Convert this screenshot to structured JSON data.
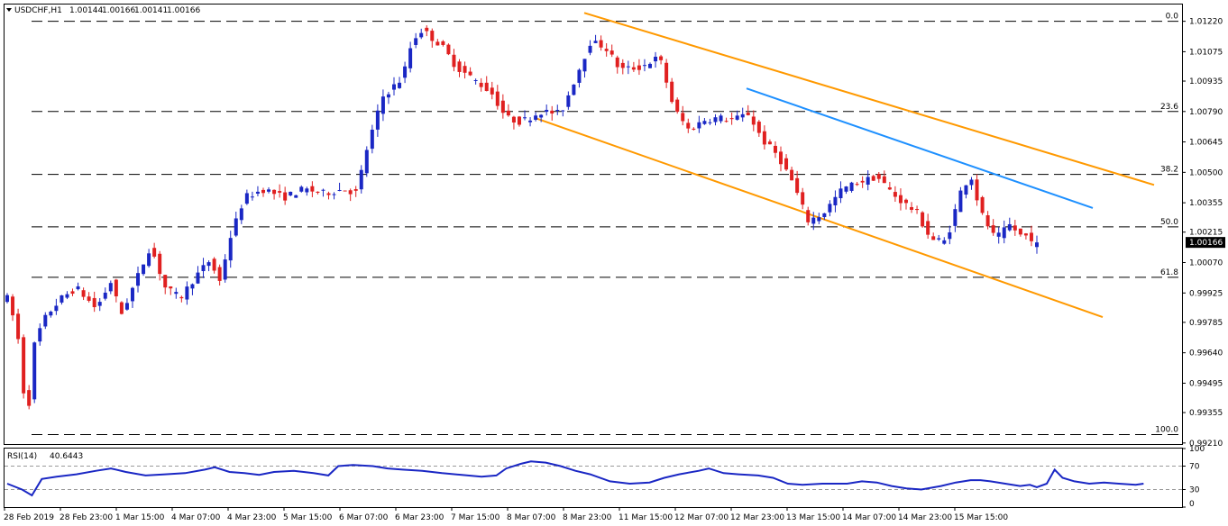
{
  "header": {
    "symbol": "USDCHF,H1",
    "open": "1.00144",
    "high": "1.00166",
    "low": "1.00141",
    "close": "1.00166"
  },
  "chart_data": {
    "type": "candlestick",
    "symbol": "USDCHF",
    "timeframe": "H1",
    "ylim": [
      0.99205,
      1.013
    ],
    "y_ticks": [
      "1.01220",
      "1.01075",
      "1.00935",
      "1.00790",
      "1.00645",
      "1.00500",
      "1.00355",
      "1.00215",
      "1.00070",
      "0.99925",
      "0.99785",
      "0.99640",
      "0.99495",
      "0.99355",
      "0.99210"
    ],
    "x_ticks": [
      "28 Feb 2019",
      "28 Feb 23:00",
      "1 Mar 15:00",
      "4 Mar 07:00",
      "4 Mar 23:00",
      "5 Mar 15:00",
      "6 Mar 07:00",
      "6 Mar 23:00",
      "7 Mar 15:00",
      "8 Mar 07:00",
      "8 Mar 23:00",
      "11 Mar 15:00",
      "12 Mar 07:00",
      "12 Mar 23:00",
      "13 Mar 15:00",
      "14 Mar 07:00",
      "14 Mar 23:00",
      "15 Mar 15:00"
    ],
    "current_price": "1.00166",
    "fibonacci": [
      {
        "label": "0.0",
        "price": 1.0122
      },
      {
        "label": "23.6",
        "price": 1.0079
      },
      {
        "label": "38.2",
        "price": 1.0049
      },
      {
        "label": "50.0",
        "price": 1.0024
      },
      {
        "label": "61.8",
        "price": 1.0
      },
      {
        "label": "100.0",
        "price": 0.9925
      }
    ],
    "anchors": [
      [
        0,
        0.999
      ],
      [
        10,
        0.9975
      ],
      [
        20,
        0.993
      ],
      [
        28,
        0.997
      ],
      [
        40,
        0.9982
      ],
      [
        55,
        0.999
      ],
      [
        70,
        0.9995
      ],
      [
        90,
        0.9985
      ],
      [
        105,
        0.9998
      ],
      [
        115,
        0.9982
      ],
      [
        130,
        0.9998
      ],
      [
        145,
        1.0015
      ],
      [
        160,
        0.9995
      ],
      [
        175,
        0.999
      ],
      [
        190,
        1.0
      ],
      [
        205,
        1.0008
      ],
      [
        215,
        0.9998
      ],
      [
        225,
        1.0018
      ],
      [
        240,
        1.0038
      ],
      [
        260,
        1.0042
      ],
      [
        280,
        1.0038
      ],
      [
        300,
        1.0042
      ],
      [
        320,
        1.004
      ],
      [
        340,
        1.0042
      ],
      [
        355,
        1.004
      ],
      [
        360,
        1.0055
      ],
      [
        380,
        1.0086
      ],
      [
        400,
        1.0095
      ],
      [
        410,
        1.0113
      ],
      [
        420,
        1.0118
      ],
      [
        440,
        1.011
      ],
      [
        455,
        1.01
      ],
      [
        470,
        1.0095
      ],
      [
        490,
        1.0088
      ],
      [
        505,
        1.0076
      ],
      [
        520,
        1.0074
      ],
      [
        540,
        1.0079
      ],
      [
        560,
        1.0078
      ],
      [
        575,
        1.0095
      ],
      [
        590,
        1.0112
      ],
      [
        605,
        1.011
      ],
      [
        620,
        1.0099
      ],
      [
        640,
        1.01
      ],
      [
        660,
        1.0105
      ],
      [
        675,
        1.008
      ],
      [
        690,
        1.007
      ],
      [
        705,
        1.0075
      ],
      [
        720,
        1.0076
      ],
      [
        735,
        1.0075
      ],
      [
        750,
        1.0078
      ],
      [
        765,
        1.0065
      ],
      [
        780,
        1.0058
      ],
      [
        795,
        1.0045
      ],
      [
        810,
        1.0027
      ],
      [
        825,
        1.003
      ],
      [
        845,
        1.0042
      ],
      [
        860,
        1.0045
      ],
      [
        880,
        1.0048
      ],
      [
        900,
        1.0038
      ],
      [
        920,
        1.0031
      ],
      [
        935,
        1.0018
      ],
      [
        950,
        1.0017
      ],
      [
        965,
        1.0041
      ],
      [
        975,
        1.0049
      ],
      [
        985,
        1.0031
      ],
      [
        1000,
        1.0018
      ],
      [
        1015,
        1.0025
      ],
      [
        1025,
        1.002
      ],
      [
        1035,
        1.00195
      ],
      [
        1042,
        1.00166
      ]
    ],
    "trendlines": [
      {
        "color": "#ff9900",
        "points": [
          [
            "8 Mar 07:00",
            1.0076
          ],
          [
            "15 Mar 15:00+",
            0.9981
          ]
        ]
      },
      {
        "color": "#ff9900",
        "points": [
          [
            "8 Mar 23:00",
            1.0126
          ],
          [
            "15 Mar 15:00+",
            1.0044
          ]
        ]
      },
      {
        "color": "#1e90ff",
        "points": [
          [
            "12 Mar 07:00",
            1.009
          ],
          [
            "15 Mar 15:00+",
            1.0033
          ]
        ]
      }
    ],
    "rsi": {
      "label": "RSI(14)",
      "value": "40.6443",
      "levels": [
        70,
        30
      ],
      "scale_labels": [
        "100",
        "70",
        "30",
        "0"
      ],
      "series": [
        [
          0,
          40
        ],
        [
          15,
          30
        ],
        [
          25,
          20
        ],
        [
          35,
          48
        ],
        [
          50,
          52
        ],
        [
          70,
          56
        ],
        [
          90,
          62
        ],
        [
          105,
          66
        ],
        [
          120,
          60
        ],
        [
          140,
          54
        ],
        [
          160,
          56
        ],
        [
          180,
          58
        ],
        [
          200,
          64
        ],
        [
          210,
          68
        ],
        [
          225,
          60
        ],
        [
          240,
          58
        ],
        [
          255,
          55
        ],
        [
          270,
          60
        ],
        [
          290,
          62
        ],
        [
          310,
          58
        ],
        [
          325,
          54
        ],
        [
          335,
          70
        ],
        [
          350,
          72
        ],
        [
          370,
          70
        ],
        [
          385,
          66
        ],
        [
          400,
          64
        ],
        [
          420,
          62
        ],
        [
          440,
          58
        ],
        [
          460,
          55
        ],
        [
          480,
          52
        ],
        [
          495,
          54
        ],
        [
          505,
          66
        ],
        [
          520,
          74
        ],
        [
          530,
          78
        ],
        [
          545,
          76
        ],
        [
          560,
          70
        ],
        [
          575,
          62
        ],
        [
          590,
          56
        ],
        [
          610,
          44
        ],
        [
          630,
          40
        ],
        [
          650,
          42
        ],
        [
          665,
          50
        ],
        [
          680,
          56
        ],
        [
          700,
          62
        ],
        [
          710,
          66
        ],
        [
          725,
          58
        ],
        [
          740,
          56
        ],
        [
          760,
          54
        ],
        [
          775,
          50
        ],
        [
          790,
          40
        ],
        [
          805,
          38
        ],
        [
          825,
          40
        ],
        [
          850,
          40
        ],
        [
          865,
          44
        ],
        [
          880,
          42
        ],
        [
          895,
          36
        ],
        [
          910,
          32
        ],
        [
          925,
          30
        ],
        [
          945,
          36
        ],
        [
          960,
          42
        ],
        [
          975,
          46
        ],
        [
          985,
          46
        ],
        [
          995,
          44
        ],
        [
          1010,
          40
        ],
        [
          1025,
          36
        ],
        [
          1035,
          38
        ],
        [
          1042,
          34
        ],
        [
          1052,
          40
        ],
        [
          1060,
          64
        ],
        [
          1068,
          50
        ],
        [
          1080,
          44
        ],
        [
          1095,
          40
        ],
        [
          1110,
          42
        ],
        [
          1125,
          40
        ],
        [
          1142,
          38
        ],
        [
          1150,
          40
        ]
      ]
    }
  },
  "colors": {
    "up_candle": "#1a27c4",
    "down_candle": "#e02020",
    "channel": "#ff9900",
    "resistance": "#1e90ff",
    "rsi_line": "#1a27c4",
    "price_label_bg": "#000000"
  }
}
